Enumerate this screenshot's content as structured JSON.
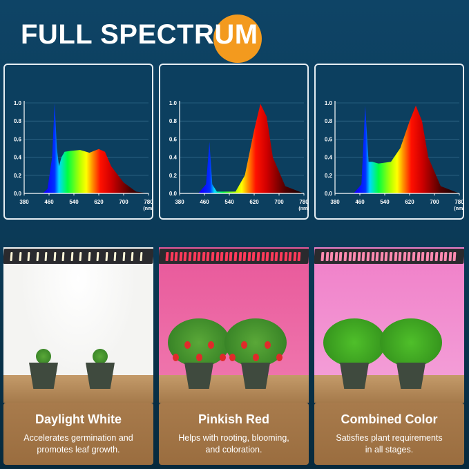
{
  "header": {
    "title": "FULL SPECTRUM",
    "accent_color": "#f39a1e"
  },
  "chart_data": [
    {
      "type": "area",
      "y_ticks": [
        "0.0",
        "0.2",
        "0.4",
        "0.6",
        "0.8",
        "1.0"
      ],
      "x_ticks": [
        "380",
        "460",
        "540",
        "620",
        "700",
        "780"
      ],
      "x_unit": "(nm)",
      "xlim": [
        380,
        780
      ],
      "ylim": [
        0,
        1
      ],
      "grid": true,
      "x": [
        440,
        455,
        470,
        478,
        485,
        492,
        500,
        510,
        530,
        560,
        590,
        620,
        640,
        660,
        700,
        740,
        780
      ],
      "y": [
        0,
        0.05,
        0.4,
        1.0,
        0.5,
        0.3,
        0.4,
        0.46,
        0.47,
        0.48,
        0.45,
        0.49,
        0.46,
        0.3,
        0.12,
        0.02,
        0
      ]
    },
    {
      "type": "area",
      "y_ticks": [
        "0.0",
        "0.2",
        "0.4",
        "0.6",
        "0.8",
        "1.0"
      ],
      "x_ticks": [
        "380",
        "460",
        "540",
        "620",
        "700",
        "780"
      ],
      "x_unit": "(nm)",
      "xlim": [
        380,
        780
      ],
      "ylim": [
        0,
        1
      ],
      "grid": true,
      "x": [
        440,
        465,
        476,
        485,
        500,
        560,
        590,
        620,
        640,
        660,
        680,
        720,
        780
      ],
      "y": [
        0,
        0.1,
        0.57,
        0.1,
        0.02,
        0.02,
        0.2,
        0.7,
        0.99,
        0.85,
        0.4,
        0.08,
        0
      ]
    },
    {
      "type": "area",
      "y_ticks": [
        "0.0",
        "0.2",
        "0.4",
        "0.6",
        "0.8",
        "1.0"
      ],
      "x_ticks": [
        "380",
        "460",
        "540",
        "620",
        "700",
        "780"
      ],
      "x_unit": "(nm)",
      "xlim": [
        380,
        780
      ],
      "ylim": [
        0,
        1
      ],
      "grid": true,
      "x": [
        440,
        465,
        477,
        488,
        500,
        520,
        560,
        590,
        620,
        640,
        660,
        680,
        720,
        780
      ],
      "y": [
        0,
        0.1,
        0.97,
        0.35,
        0.35,
        0.33,
        0.35,
        0.5,
        0.8,
        0.97,
        0.8,
        0.4,
        0.08,
        0
      ]
    }
  ],
  "modes": [
    {
      "title": "Daylight White",
      "line1": "Accelerates germination and",
      "line2": "promotes leaf growth.",
      "light_color": "#f4f4f2",
      "led_color": "#fff6d8"
    },
    {
      "title": "Pinkish Red",
      "line1": "Helps with rooting, blooming,",
      "line2": "and coloration.",
      "light_color": "#e8589a",
      "led_color": "#ff3a5a"
    },
    {
      "title": "Combined Color",
      "line1": "Satisfies plant requirements",
      "line2": "in all stages.",
      "light_color": "#f07fc8",
      "led_color": "#ff8ab0"
    }
  ]
}
